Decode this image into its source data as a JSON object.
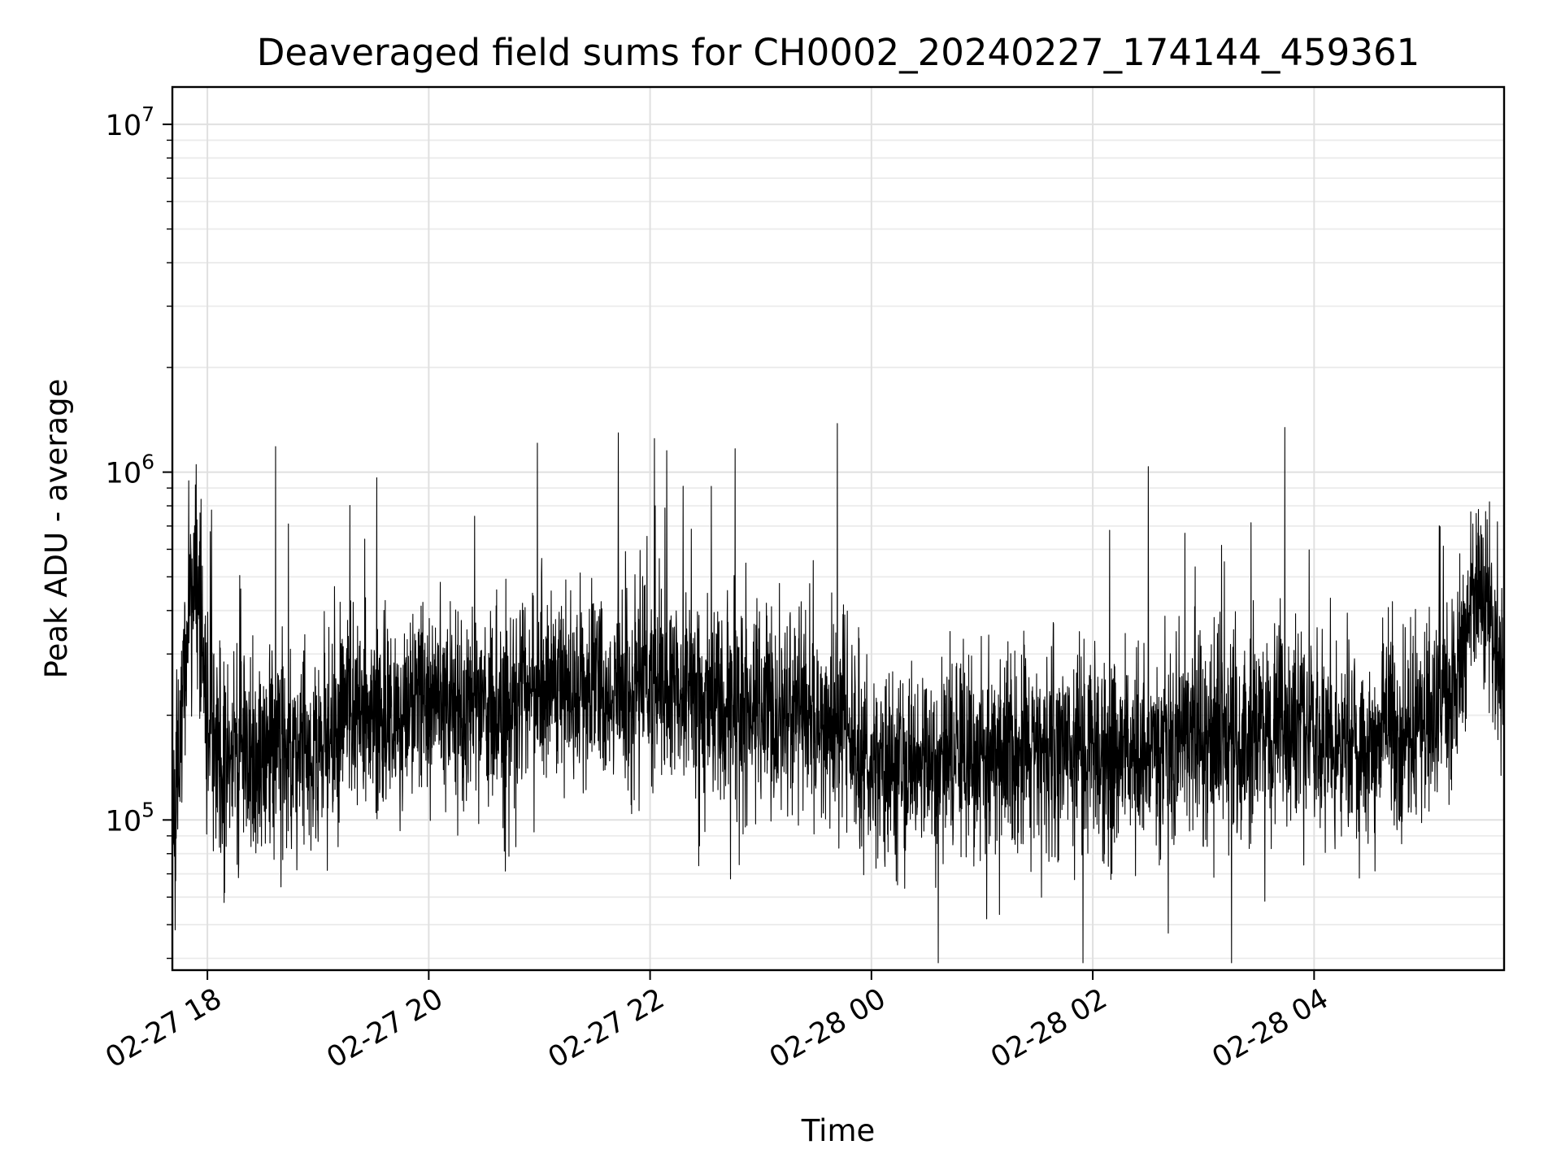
{
  "chart_data": {
    "type": "line",
    "title": "Deaveraged field sums for CH0002_20240227_174144_459361",
    "xlabel": "Time",
    "ylabel": "Peak ADU - average",
    "yscale": "log",
    "ylim": [
      37000,
      12800000
    ],
    "xlim": [
      "2024-02-27 17:41",
      "2024-02-28 05:43"
    ],
    "grid": true,
    "grid_which": "major and minor",
    "x_ticks": [
      {
        "time": "2024-02-27 18:00",
        "label": "02-27 18"
      },
      {
        "time": "2024-02-27 20:00",
        "label": "02-27 20"
      },
      {
        "time": "2024-02-27 22:00",
        "label": "02-27 22"
      },
      {
        "time": "2024-02-28 00:00",
        "label": "02-28 00"
      },
      {
        "time": "2024-02-28 02:00",
        "label": "02-28 02"
      },
      {
        "time": "2024-02-28 04:00",
        "label": "02-28 04"
      }
    ],
    "y_ticks": [
      {
        "value": 100000,
        "base": "10",
        "exp": "5"
      },
      {
        "value": 1000000,
        "base": "10",
        "exp": "6"
      },
      {
        "value": 10000000,
        "base": "10",
        "exp": "7"
      }
    ],
    "series": [
      {
        "color": "#000000",
        "x": [
          "2024-02-27 17:41",
          "2024-02-27 17:45",
          "2024-02-27 17:50",
          "2024-02-27 17:55",
          "2024-02-27 18:00",
          "2024-02-27 18:10",
          "2024-02-27 18:20",
          "2024-02-27 18:30",
          "2024-02-27 18:40",
          "2024-02-27 18:50",
          "2024-02-27 19:00",
          "2024-02-27 19:15",
          "2024-02-27 19:30",
          "2024-02-27 19:45",
          "2024-02-27 20:00",
          "2024-02-27 20:20",
          "2024-02-27 20:40",
          "2024-02-27 21:00",
          "2024-02-27 21:20",
          "2024-02-27 21:40",
          "2024-02-27 22:00",
          "2024-02-27 22:20",
          "2024-02-27 22:40",
          "2024-02-27 23:00",
          "2024-02-27 23:20",
          "2024-02-27 23:40",
          "2024-02-28 00:00",
          "2024-02-28 00:20",
          "2024-02-28 00:40",
          "2024-02-28 01:00",
          "2024-02-28 01:20",
          "2024-02-28 01:40",
          "2024-02-28 02:00",
          "2024-02-28 02:20",
          "2024-02-28 02:40",
          "2024-02-28 03:00",
          "2024-02-28 03:20",
          "2024-02-28 03:40",
          "2024-02-28 04:00",
          "2024-02-28 04:20",
          "2024-02-28 04:40",
          "2024-02-28 05:00",
          "2024-02-28 05:15",
          "2024-02-28 05:30",
          "2024-02-28 05:43"
        ],
        "y": [
          70000,
          160000,
          400000,
          500000,
          180000,
          150000,
          160000,
          150000,
          170000,
          160000,
          170000,
          190000,
          200000,
          210000,
          220000,
          200000,
          210000,
          240000,
          250000,
          230000,
          250000,
          240000,
          220000,
          210000,
          200000,
          190000,
          150000,
          140000,
          150000,
          150000,
          160000,
          160000,
          150000,
          160000,
          170000,
          180000,
          170000,
          180000,
          180000,
          160000,
          170000,
          200000,
          230000,
          500000,
          250000
        ]
      }
    ]
  }
}
